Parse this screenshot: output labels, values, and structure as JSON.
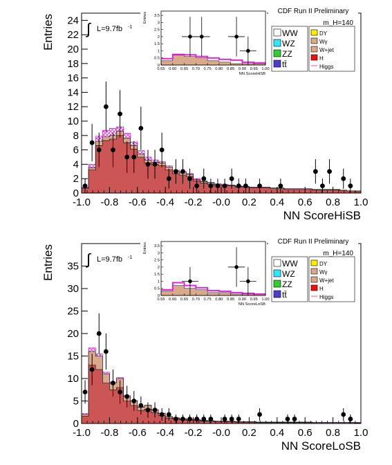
{
  "chart_data": [
    {
      "type": "bar",
      "title": "CDF Run II Preliminary",
      "mass_label": "m_H=140",
      "lumi_label": "L=9.7fb",
      "lumi_sup": "-1",
      "xlabel": "NN ScoreHiSB",
      "ylabel": "Entries",
      "xlim": [
        -1.0,
        1.0
      ],
      "ylim": [
        0,
        25
      ],
      "x_ticks": [
        -1.0,
        -0.8,
        -0.6,
        -0.4,
        -0.2,
        0.0,
        0.2,
        0.4,
        0.6,
        0.8,
        1.0
      ],
      "x_tick_labels": [
        "-1.0",
        "-0.8",
        "-0.6",
        "-0.4",
        "-0.2",
        "-0.0",
        "0.2",
        "0.4",
        "0.6",
        "0.8",
        "1.0"
      ],
      "y_ticks": [
        0,
        2,
        4,
        6,
        8,
        10,
        12,
        14,
        16,
        18,
        20,
        22,
        24
      ],
      "bin_edges": [
        -1.0,
        -0.95,
        -0.9,
        -0.85,
        -0.8,
        -0.75,
        -0.7,
        -0.65,
        -0.6,
        -0.55,
        -0.5,
        -0.45,
        -0.4,
        -0.35,
        -0.3,
        -0.25,
        -0.2,
        -0.15,
        -0.1,
        -0.05,
        0.0,
        0.05,
        0.1,
        0.15,
        0.2,
        0.25,
        0.3,
        0.35,
        0.4,
        0.45,
        0.5,
        0.55,
        0.6,
        0.65,
        0.7,
        0.75,
        0.8,
        0.85,
        0.9,
        0.95,
        1.0
      ],
      "background_total": [
        0.7,
        3.5,
        7.2,
        7.8,
        8.0,
        8.6,
        7.6,
        6.6,
        5.4,
        4.6,
        4.3,
        4.2,
        3.6,
        3.0,
        2.8,
        2.6,
        1.9,
        1.6,
        1.4,
        1.2,
        1.1,
        1.1,
        0.9,
        0.9,
        0.8,
        0.8,
        0.8,
        0.7,
        0.7,
        0.6,
        0.6,
        0.6,
        0.6,
        0.5,
        0.5,
        0.5,
        0.5,
        0.4,
        0.3,
        0.3
      ],
      "ww_component": [
        0.6,
        3.2,
        6.6,
        7.3,
        7.5,
        8.0,
        7.0,
        6.1,
        5.0,
        4.2,
        4.0,
        3.8,
        3.2,
        2.7,
        2.5,
        2.3,
        1.7,
        1.4,
        1.2,
        1.0,
        1.0,
        1.0,
        0.8,
        0.8,
        0.7,
        0.7,
        0.7,
        0.6,
        0.6,
        0.5,
        0.5,
        0.5,
        0.5,
        0.4,
        0.4,
        0.4,
        0.4,
        0.3,
        0.3,
        0.2
      ],
      "signal_stack_top": [
        0.8,
        4.0,
        7.9,
        8.7,
        9.0,
        9.2,
        8.3,
        7.1,
        5.9,
        5.0,
        4.6,
        4.4,
        3.8,
        3.2,
        3.0,
        2.7,
        2.0,
        1.7,
        1.5,
        1.3,
        1.2,
        1.1,
        1.0,
        0.9,
        0.8,
        0.8,
        0.8,
        0.7,
        0.7,
        0.6,
        0.6,
        0.6,
        0.6,
        0.5,
        0.5,
        0.5,
        0.5,
        0.4,
        0.3,
        0.3
      ],
      "data_points": [
        {
          "x": -0.975,
          "y": 1,
          "err": 1.0
        },
        {
          "x": -0.925,
          "y": 7,
          "err": 2.6
        },
        {
          "x": -0.875,
          "y": 6,
          "err": 2.4
        },
        {
          "x": -0.825,
          "y": 12,
          "err": 3.5
        },
        {
          "x": -0.775,
          "y": 6,
          "err": 2.4
        },
        {
          "x": -0.725,
          "y": 11,
          "err": 3.3
        },
        {
          "x": -0.675,
          "y": 5,
          "err": 2.2
        },
        {
          "x": -0.625,
          "y": 5,
          "err": 2.2
        },
        {
          "x": -0.575,
          "y": 9,
          "err": 3.0
        },
        {
          "x": -0.525,
          "y": 4,
          "err": 2.0
        },
        {
          "x": -0.475,
          "y": 4,
          "err": 2.0
        },
        {
          "x": -0.425,
          "y": 6,
          "err": 2.4
        },
        {
          "x": -0.375,
          "y": 2,
          "err": 1.4
        },
        {
          "x": -0.325,
          "y": 3,
          "err": 1.7
        },
        {
          "x": -0.275,
          "y": 3,
          "err": 1.7
        },
        {
          "x": -0.225,
          "y": 2,
          "err": 1.4
        },
        {
          "x": -0.175,
          "y": 1,
          "err": 1.0
        },
        {
          "x": -0.125,
          "y": 2,
          "err": 1.4
        },
        {
          "x": -0.075,
          "y": 1,
          "err": 1.0
        },
        {
          "x": -0.025,
          "y": 1,
          "err": 1.0
        },
        {
          "x": 0.025,
          "y": 1,
          "err": 1.0
        },
        {
          "x": 0.075,
          "y": 2,
          "err": 1.4
        },
        {
          "x": 0.125,
          "y": 1,
          "err": 1.0
        },
        {
          "x": 0.175,
          "y": 1,
          "err": 1.0
        },
        {
          "x": 0.275,
          "y": 1,
          "err": 1.0
        },
        {
          "x": 0.425,
          "y": 1,
          "err": 1.0
        },
        {
          "x": 0.675,
          "y": 3,
          "err": 1.7
        },
        {
          "x": 0.725,
          "y": 1,
          "err": 1.0
        },
        {
          "x": 0.775,
          "y": 3,
          "err": 1.7
        },
        {
          "x": 0.875,
          "y": 2,
          "err": 1.4
        },
        {
          "x": 0.925,
          "y": 1,
          "err": 1.0
        }
      ],
      "inset": {
        "xlabel": "NN ScoreHiSB",
        "ylabel": "Entries",
        "xlim": [
          0.55,
          1.0
        ],
        "ylim": [
          0,
          3.8
        ],
        "x_tick_labels": [
          "0.55",
          "0.60",
          "0.65",
          "0.70",
          "0.75",
          "0.80",
          "0.85",
          "0.90",
          "0.95",
          "1.00"
        ],
        "y_tick_labels": [
          "0",
          "0.5",
          "1",
          "1.5",
          "2",
          "2.5",
          "3",
          "3.5"
        ],
        "bin_edges": [
          0.55,
          0.6,
          0.65,
          0.7,
          0.75,
          0.8,
          0.85,
          0.9,
          0.95,
          1.0
        ],
        "background_total": [
          0.3,
          0.7,
          0.6,
          0.5,
          0.3,
          0.2,
          0.1,
          0.1,
          0.1
        ],
        "signal_line": [
          0.45,
          0.75,
          0.72,
          0.6,
          0.5,
          0.4,
          0.35,
          0.2,
          0.15
        ],
        "data_points": [
          {
            "x": 0.675,
            "y": 2,
            "err": 1.4
          },
          {
            "x": 0.725,
            "y": 2,
            "err": 1.4
          },
          {
            "x": 0.875,
            "y": 2,
            "err": 1.4
          },
          {
            "x": 0.925,
            "y": 1,
            "err": 1.0
          }
        ]
      }
    },
    {
      "type": "bar",
      "title": "CDF Run II Preliminary",
      "mass_label": "m_H=140",
      "lumi_label": "L=9.7fb",
      "lumi_sup": "-1",
      "xlabel": "NN ScoreLoSB",
      "ylabel": "Entries",
      "xlim": [
        -1.0,
        1.0
      ],
      "ylim": [
        0,
        40
      ],
      "x_ticks": [
        -1.0,
        -0.8,
        -0.6,
        -0.4,
        -0.2,
        0.0,
        0.2,
        0.4,
        0.6,
        0.8,
        1.0
      ],
      "x_tick_labels": [
        "-1.0",
        "-0.8",
        "-0.6",
        "-0.4",
        "-0.2",
        "-0.0",
        "0.2",
        "0.4",
        "0.6",
        "0.8",
        "1.0"
      ],
      "y_ticks": [
        0,
        5,
        10,
        15,
        20,
        25,
        30,
        35
      ],
      "bin_edges": [
        -1.0,
        -0.95,
        -0.9,
        -0.85,
        -0.8,
        -0.75,
        -0.7,
        -0.65,
        -0.6,
        -0.55,
        -0.5,
        -0.45,
        -0.4,
        -0.35,
        -0.3,
        -0.25,
        -0.2,
        -0.15,
        -0.1,
        -0.05,
        0.0,
        0.05,
        0.1,
        0.15,
        0.2,
        0.25,
        0.3,
        0.35,
        0.4,
        0.45,
        0.5,
        0.55,
        0.6,
        0.65,
        0.7,
        0.75,
        0.8,
        0.85,
        0.9,
        0.95,
        1.0
      ],
      "background_total": [
        2.0,
        16.0,
        15.0,
        11.0,
        9.0,
        10.0,
        6.0,
        5.0,
        3.6,
        4.0,
        3.0,
        2.2,
        1.5,
        1.2,
        1.0,
        0.9,
        0.8,
        0.6,
        0.6,
        0.5,
        0.5,
        0.5,
        0.4,
        0.4,
        0.4,
        0.3,
        0.3,
        0.3,
        0.3,
        0.3,
        0.3,
        0.3,
        0.3,
        0.2,
        0.2,
        0.2,
        0.2,
        0.2,
        0.2,
        0.2
      ],
      "ww_component": [
        1.6,
        13.0,
        12.0,
        9.0,
        7.5,
        8.0,
        5.0,
        4.0,
        2.9,
        3.2,
        2.4,
        1.8,
        1.2,
        1.0,
        0.8,
        0.7,
        0.6,
        0.5,
        0.5,
        0.4,
        0.4,
        0.4,
        0.3,
        0.3,
        0.3,
        0.2,
        0.2,
        0.2,
        0.2,
        0.2,
        0.2,
        0.2,
        0.2,
        0.2,
        0.2,
        0.2,
        0.2,
        0.2,
        0.2,
        0.1
      ],
      "signal_stack_top": [
        2.2,
        16.8,
        15.5,
        11.4,
        9.2,
        10.2,
        6.2,
        5.1,
        3.7,
        4.1,
        3.1,
        2.3,
        1.6,
        1.3,
        1.1,
        1.0,
        0.9,
        0.7,
        0.6,
        0.5,
        0.5,
        0.5,
        0.4,
        0.4,
        0.4,
        0.3,
        0.3,
        0.3,
        0.3,
        0.3,
        0.3,
        0.3,
        0.3,
        0.2,
        0.2,
        0.2,
        0.2,
        0.2,
        0.2,
        0.2
      ],
      "data_points": [
        {
          "x": -0.975,
          "y": 7,
          "err": 2.6
        },
        {
          "x": -0.925,
          "y": 12,
          "err": 3.5
        },
        {
          "x": -0.875,
          "y": 20,
          "err": 4.5
        },
        {
          "x": -0.825,
          "y": 16,
          "err": 4.0
        },
        {
          "x": -0.775,
          "y": 9,
          "err": 3.0
        },
        {
          "x": -0.725,
          "y": 7,
          "err": 2.6
        },
        {
          "x": -0.675,
          "y": 6,
          "err": 2.4
        },
        {
          "x": -0.625,
          "y": 5,
          "err": 2.2
        },
        {
          "x": -0.575,
          "y": 4,
          "err": 2.0
        },
        {
          "x": -0.525,
          "y": 3,
          "err": 1.7
        },
        {
          "x": -0.475,
          "y": 3,
          "err": 1.7
        },
        {
          "x": -0.425,
          "y": 2,
          "err": 1.4
        },
        {
          "x": -0.375,
          "y": 2,
          "err": 1.4
        },
        {
          "x": -0.325,
          "y": 1,
          "err": 1.0
        },
        {
          "x": -0.275,
          "y": 1,
          "err": 1.0
        },
        {
          "x": -0.225,
          "y": 1,
          "err": 1.0
        },
        {
          "x": -0.175,
          "y": 1,
          "err": 1.0
        },
        {
          "x": -0.125,
          "y": 1,
          "err": 1.0
        },
        {
          "x": -0.075,
          "y": 1,
          "err": 1.0
        },
        {
          "x": 0.025,
          "y": 1,
          "err": 1.0
        },
        {
          "x": 0.075,
          "y": 1,
          "err": 1.0
        },
        {
          "x": 0.125,
          "y": 1,
          "err": 1.0
        },
        {
          "x": 0.275,
          "y": 2,
          "err": 1.4
        },
        {
          "x": 0.475,
          "y": 1,
          "err": 1.0
        },
        {
          "x": 0.525,
          "y": 1,
          "err": 1.0
        },
        {
          "x": 0.875,
          "y": 2,
          "err": 1.4
        },
        {
          "x": 0.925,
          "y": 1,
          "err": 1.0
        }
      ],
      "inset": {
        "xlabel": "NN ScoreLoSB",
        "ylabel": "Entries",
        "xlim": [
          0.55,
          1.0
        ],
        "ylim": [
          0,
          3.8
        ],
        "x_tick_labels": [
          "0.55",
          "0.60",
          "0.65",
          "0.70",
          "0.75",
          "0.80",
          "0.85",
          "0.90",
          "0.95",
          "1.00"
        ],
        "y_tick_labels": [
          "0",
          "0.5",
          "1",
          "1.5",
          "2",
          "2.5",
          "3",
          "3.5"
        ],
        "bin_edges": [
          0.55,
          0.6,
          0.65,
          0.7,
          0.75,
          0.8,
          0.85,
          0.9,
          0.95,
          1.0
        ],
        "background_total": [
          0.3,
          0.7,
          0.5,
          0.4,
          0.2,
          0.2,
          0.1,
          0.1,
          0.1
        ],
        "signal_line": [
          0.4,
          0.9,
          0.7,
          0.55,
          0.35,
          0.3,
          0.2,
          0.15,
          0.1
        ],
        "data_points": [
          {
            "x": 0.675,
            "y": 1,
            "err": 1.0
          },
          {
            "x": 0.875,
            "y": 2,
            "err": 1.4
          },
          {
            "x": 0.925,
            "y": 1,
            "err": 1.0
          }
        ]
      }
    }
  ],
  "legend": {
    "left": [
      {
        "label": "WW",
        "color": "#ffffff"
      },
      {
        "label": "WZ",
        "color": "#33e6ff"
      },
      {
        "label": "ZZ",
        "color": "#33cc33"
      },
      {
        "label": "tt̄",
        "color": "#4d3dcc"
      }
    ],
    "right": [
      {
        "label": "DY",
        "color": "#ffee00",
        "kind": "box"
      },
      {
        "label": "Wγ",
        "color": "#d9a98c",
        "kind": "box"
      },
      {
        "label": "W+jet",
        "color": "#d9a98c",
        "kind": "box"
      },
      {
        "label": "H",
        "color": "#ee1111",
        "kind": "box"
      },
      {
        "label": "Higgs",
        "color": "#ff66aa",
        "kind": "line"
      }
    ]
  },
  "colors": {
    "background_fill": "#d9a98c",
    "ww_fill": "#cc5555",
    "signal_hatch": "#dd22dd",
    "data": "#000000"
  }
}
